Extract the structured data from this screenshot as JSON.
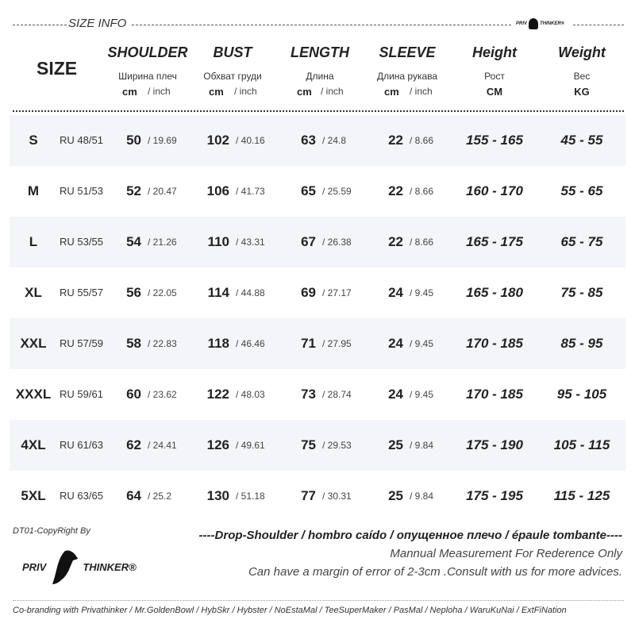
{
  "header": {
    "section_title": "SIZE INFO",
    "brand_logo": "PRIV THINKER®",
    "size_label": "SIZE"
  },
  "columns": [
    {
      "title": "SHOULDER",
      "ru": "Ширина плеч",
      "unit": "cm",
      "unit2": "/ inch"
    },
    {
      "title": "BUST",
      "ru": "Обхват груди",
      "unit": "cm",
      "unit2": "/ inch"
    },
    {
      "title": "LENGTH",
      "ru": "Длина",
      "unit": "cm",
      "unit2": "/ inch"
    },
    {
      "title": "SLEEVE",
      "ru": "Длина рукава",
      "unit": "cm",
      "unit2": "/ inch"
    },
    {
      "title": "Height",
      "ru": "Рост",
      "unit": "CM"
    },
    {
      "title": "Weight",
      "ru": "Вес",
      "unit": "KG"
    }
  ],
  "rows": [
    {
      "size": "S",
      "ru": "RU 48/51",
      "shoulder": "50",
      "shoulder_in": "/ 19.69",
      "bust": "102",
      "bust_in": "/ 40.16",
      "length": "63",
      "length_in": "/ 24.8",
      "sleeve": "22",
      "sleeve_in": "/ 8.66",
      "height": "155 - 165",
      "weight": "45 - 55"
    },
    {
      "size": "M",
      "ru": "RU 51/53",
      "shoulder": "52",
      "shoulder_in": "/ 20.47",
      "bust": "106",
      "bust_in": "/ 41.73",
      "length": "65",
      "length_in": "/ 25.59",
      "sleeve": "22",
      "sleeve_in": "/ 8.66",
      "height": "160 - 170",
      "weight": "55 - 65"
    },
    {
      "size": "L",
      "ru": "RU 53/55",
      "shoulder": "54",
      "shoulder_in": "/ 21.26",
      "bust": "110",
      "bust_in": "/ 43.31",
      "length": "67",
      "length_in": "/ 26.38",
      "sleeve": "22",
      "sleeve_in": "/ 8.66",
      "height": "165 - 175",
      "weight": "65 - 75"
    },
    {
      "size": "XL",
      "ru": "RU 55/57",
      "shoulder": "56",
      "shoulder_in": "/ 22.05",
      "bust": "114",
      "bust_in": "/ 44.88",
      "length": "69",
      "length_in": "/ 27.17",
      "sleeve": "24",
      "sleeve_in": "/ 9.45",
      "height": "165 - 180",
      "weight": "75 - 85"
    },
    {
      "size": "XXL",
      "ru": "RU 57/59",
      "shoulder": "58",
      "shoulder_in": "/ 22.83",
      "bust": "118",
      "bust_in": "/ 46.46",
      "length": "71",
      "length_in": "/ 27.95",
      "sleeve": "24",
      "sleeve_in": "/ 9.45",
      "height": "170 - 185",
      "weight": "85 - 95"
    },
    {
      "size": "XXXL",
      "ru": "RU 59/61",
      "shoulder": "60",
      "shoulder_in": "/ 23.62",
      "bust": "122",
      "bust_in": "/ 48.03",
      "length": "73",
      "length_in": "/ 28.74",
      "sleeve": "24",
      "sleeve_in": "/ 9.45",
      "height": "170 - 185",
      "weight": "95 - 105"
    },
    {
      "size": "4XL",
      "ru": "RU 61/63",
      "shoulder": "62",
      "shoulder_in": "/ 24.41",
      "bust": "126",
      "bust_in": "/ 49.61",
      "length": "75",
      "length_in": "/ 29.53",
      "sleeve": "25",
      "sleeve_in": "/ 9.84",
      "height": "175 - 190",
      "weight": "105 - 115"
    },
    {
      "size": "5XL",
      "ru": "RU 63/65",
      "shoulder": "64",
      "shoulder_in": "/ 25.2",
      "bust": "130",
      "bust_in": "/ 51.18",
      "length": "77",
      "length_in": "/ 30.31",
      "sleeve": "25",
      "sleeve_in": "/ 9.84",
      "height": "175 - 195",
      "weight": "115 - 125"
    }
  ],
  "footer": {
    "copyright": "DT01-CopyRight By",
    "logo": "PRIV THINKER®",
    "drop_shoulder": "----Drop-Shoulder / hombro caído / опущенное плечо / épaule tombante----",
    "note1": "Mannual Measurement For Rederence Only",
    "note2": "Can have a margin of error of 2-3cm .Consult with us for more advices.",
    "cobranding": "Co-branding with Privathinker / Mr.GoldenBowl / HybSkr / Hybster / NoEstaMal / TeeSuperMaker / PasMal / Neploha / WaruKuNai  / ExtFiNation"
  }
}
